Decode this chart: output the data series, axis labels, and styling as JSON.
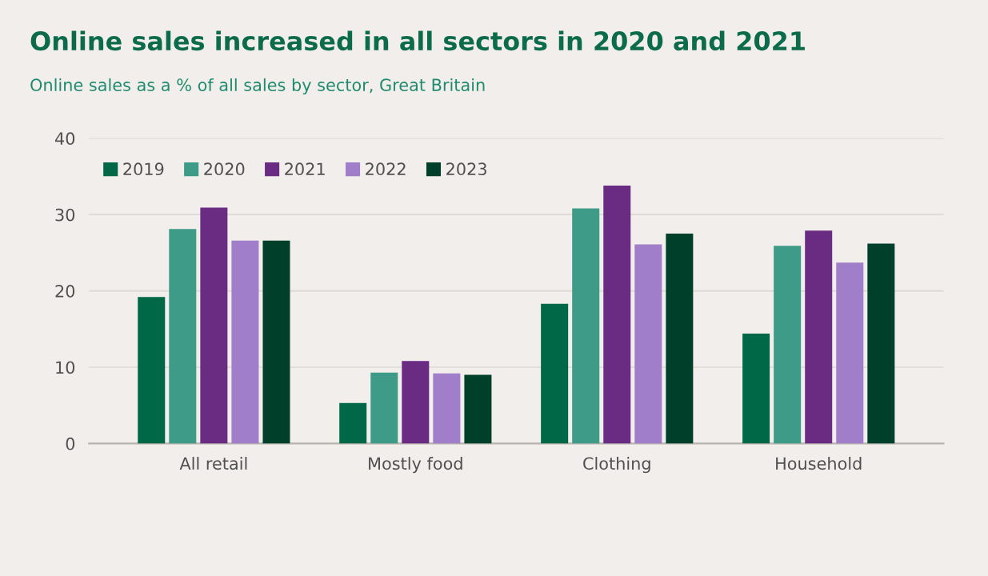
{
  "chart_data": {
    "type": "bar",
    "title": "Online sales increased in all sectors in 2020 and 2021",
    "subtitle": "Online sales as a % of all sales by sector, Great Britain",
    "categories": [
      "All retail",
      "Mostly food",
      "Clothing",
      "Household"
    ],
    "series": [
      {
        "name": "2019",
        "color": "#006747",
        "values": [
          19.2,
          5.3,
          18.3,
          14.4
        ]
      },
      {
        "name": "2020",
        "color": "#3d9b87",
        "values": [
          28.1,
          9.3,
          30.8,
          25.9
        ]
      },
      {
        "name": "2021",
        "color": "#6a2c83",
        "values": [
          30.9,
          10.8,
          33.8,
          27.9
        ]
      },
      {
        "name": "2022",
        "color": "#a07ec9",
        "values": [
          26.6,
          9.2,
          26.1,
          23.7
        ]
      },
      {
        "name": "2023",
        "color": "#00402a",
        "values": [
          26.6,
          9.0,
          27.5,
          26.2
        ]
      }
    ],
    "ylim": [
      0,
      40
    ],
    "yticks": [
      0,
      10,
      20,
      30,
      40
    ],
    "grid": "y",
    "legend": "top left"
  }
}
